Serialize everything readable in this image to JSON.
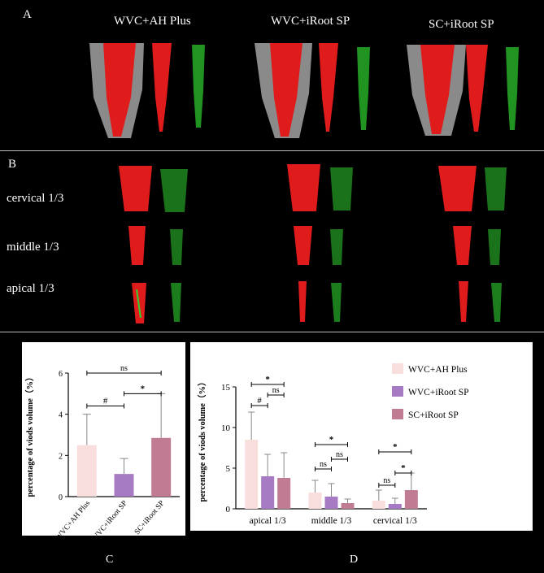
{
  "panel_a": {
    "letter": "A",
    "columns": [
      "WVC+AH Plus",
      "WVC+iRoot SP",
      "SC+iRoot SP"
    ]
  },
  "panel_b": {
    "letter": "B",
    "rows": [
      "cervical 1/3",
      "middle 1/3",
      "apical 1/3"
    ]
  },
  "panel_c": {
    "letter": "C"
  },
  "panel_d": {
    "letter": "D"
  },
  "colors": {
    "wvc_ah_plus": "#f9dede",
    "wvc_iroot_sp": "#a77bc4",
    "sc_iroot_sp": "#c07c92",
    "tooth": "#8a8a8a",
    "filling": "#e01b1b",
    "voids": "#2fd12f"
  },
  "chart_data": [
    {
      "type": "bar",
      "ylabel": "percentage of viods volume（%）",
      "xlabel": "",
      "categories": [
        "WVC+AH Plus",
        "WVC+iRoot SP",
        "SC+iRoot SP"
      ],
      "values": [
        2.5,
        1.1,
        2.85
      ],
      "errors": [
        1.5,
        0.75,
        2.15
      ],
      "ylim": [
        0,
        6
      ],
      "yticks": [
        "0",
        "2",
        "4",
        "6"
      ],
      "annotations": [
        {
          "from": 0,
          "to": 1,
          "label": "#"
        },
        {
          "from": 1,
          "to": 2,
          "label": "*"
        },
        {
          "from": 0,
          "to": 2,
          "label": "ns"
        }
      ]
    },
    {
      "type": "bar",
      "ylabel": "percentage of viods volume（%）",
      "xlabel": "",
      "categories": [
        "apical 1/3",
        "middle 1/3",
        "cervical 1/3"
      ],
      "series": [
        {
          "name": "WVC+AH Plus",
          "values": [
            8.5,
            2.0,
            1.0
          ],
          "errors": [
            3.4,
            1.5,
            1.3
          ]
        },
        {
          "name": "WVC+iRoot SP",
          "values": [
            4.0,
            1.5,
            0.6
          ],
          "errors": [
            2.7,
            1.6,
            0.7
          ]
        },
        {
          "name": "SC+iRoot SP",
          "values": [
            3.8,
            0.7,
            2.3
          ],
          "errors": [
            3.1,
            0.5,
            2.1
          ]
        }
      ],
      "ylim": [
        0,
        15
      ],
      "yticks": [
        "0",
        "5",
        "10",
        "15"
      ],
      "legend_position": "right",
      "annotations": [
        {
          "group": 0,
          "from": 0,
          "to": 1,
          "label": "#"
        },
        {
          "group": 0,
          "from": 1,
          "to": 2,
          "label": "ns"
        },
        {
          "group": 0,
          "from": 0,
          "to": 2,
          "label": "*"
        },
        {
          "group": 1,
          "from": 0,
          "to": 1,
          "label": "ns"
        },
        {
          "group": 1,
          "from": 1,
          "to": 2,
          "label": "ns"
        },
        {
          "group": 1,
          "from": 0,
          "to": 2,
          "label": "*"
        },
        {
          "group": 2,
          "from": 0,
          "to": 1,
          "label": "ns"
        },
        {
          "group": 2,
          "from": 1,
          "to": 2,
          "label": "*"
        },
        {
          "group": 2,
          "from": 0,
          "to": 2,
          "label": "*"
        }
      ]
    }
  ]
}
